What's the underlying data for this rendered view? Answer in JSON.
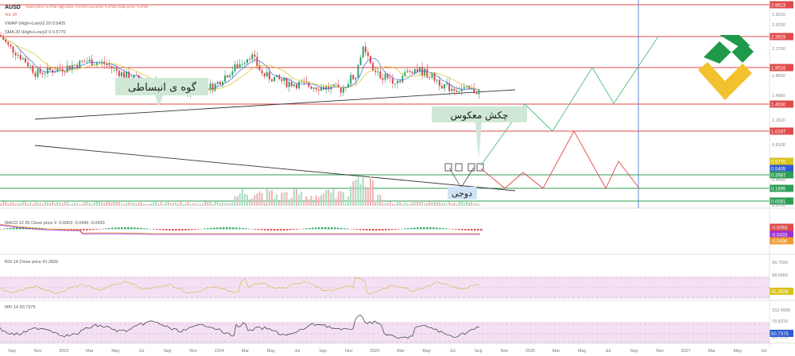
{
  "header": {
    "symbol": "AUSD",
    "ohlc": "Open price: 0.4730   High price: 0.4734   Low price: 0.4728   Close price: 0.4729",
    "vol": "Vol: 20",
    "vwap": "VWAP (High+Low)/2 20 0.5405",
    "sma": "SMA 20 (High+Low)/2 0 0.5770"
  },
  "annotations": {
    "expanding_wedge": "گوه ی انبساطی",
    "reversal_flag": "چکش معکوس",
    "doji": "دوجی"
  },
  "colors": {
    "price_line": "#e0524f",
    "tag_red": "#e04a4a",
    "tag_green": "#2e9e57",
    "tag_blue": "#2f5bd3",
    "tag_yellow": "#d9c21c",
    "tag_purple": "#9b2fd6",
    "tag_orange": "#f29a2e",
    "candle_up": "#2ea36a",
    "candle_down": "#d9474a",
    "label_bg": "#cfe8d6",
    "doji_bg": "#cfe3f5",
    "vertical_line": "#5b8fd4",
    "logo_green": "#1e9a4a",
    "logo_yellow": "#f2c12e"
  },
  "chart_data": [
    {
      "type": "candlestick",
      "title": "AUSD",
      "y_scale": "log",
      "ylim": [
        0.05,
        3.0
      ],
      "x_ticks": [
        "Sep",
        "Nov",
        "2023",
        "Mar",
        "May",
        "Jul",
        "Sep",
        "Nov",
        "2024",
        "Mar",
        "May",
        "Jul",
        "Sep",
        "Nov",
        "2025",
        "Mar",
        "May",
        "Jul",
        "Sep",
        "Nov",
        "2026",
        "Mar",
        "May",
        "Jul",
        "Sep",
        "Nov",
        "2027",
        "Mar",
        "May",
        "Jul"
      ],
      "y_ticks": [
        "2.6910",
        "2.5200",
        "2.1760",
        "1.8650",
        "1.4960",
        "1.1520",
        "0.8100",
        "0.4660",
        "0.3720"
      ],
      "price_tags": [
        {
          "label": "2.8623",
          "color": "red"
        },
        {
          "label": "2.3929",
          "color": "red"
        },
        {
          "label": "1.9516",
          "color": "red"
        },
        {
          "label": "1.4030",
          "color": "red"
        },
        {
          "label": "1.0187",
          "color": "red"
        },
        {
          "label": "0.5770",
          "color": "yellow"
        },
        {
          "label": "0.5405",
          "color": "blue"
        },
        {
          "label": "0.3987",
          "color": "green"
        },
        {
          "label": "0.1895",
          "color": "green"
        },
        {
          "label": "0.0081",
          "color": "green"
        }
      ],
      "projections": {
        "green_path": [
          0.48,
          1.2,
          1.45,
          0.95,
          1.45,
          1.95,
          1.55,
          2.4
        ],
        "red_path": [
          0.46,
          0.34,
          0.62,
          0.4,
          0.55,
          0.3,
          0.42,
          0.28
        ]
      }
    },
    {
      "type": "line",
      "title": "MACD",
      "legend": "MACD 12 26 Close price 9  -0.0063  -0.0496  -0.0433",
      "tags": [
        {
          "label": "-0.0063",
          "color": "red"
        },
        {
          "label": "-0.0433",
          "color": "purple"
        },
        {
          "label": "-0.0496",
          "color": "orange"
        }
      ]
    },
    {
      "type": "line",
      "title": "RSI",
      "legend": "RSI 14 Close price 41.3926",
      "y_ticks": [
        "90.7590",
        "68.0600",
        "41.3926"
      ],
      "tags": [
        {
          "label": "41.3926",
          "color": "yellow"
        }
      ]
    },
    {
      "type": "line",
      "title": "MFI",
      "legend": "MFI 14 50.7375",
      "y_ticks": [
        "152.4990",
        "79.8210",
        "50.7375"
      ],
      "tags": [
        {
          "label": "50.7375",
          "color": "blue"
        }
      ]
    }
  ]
}
